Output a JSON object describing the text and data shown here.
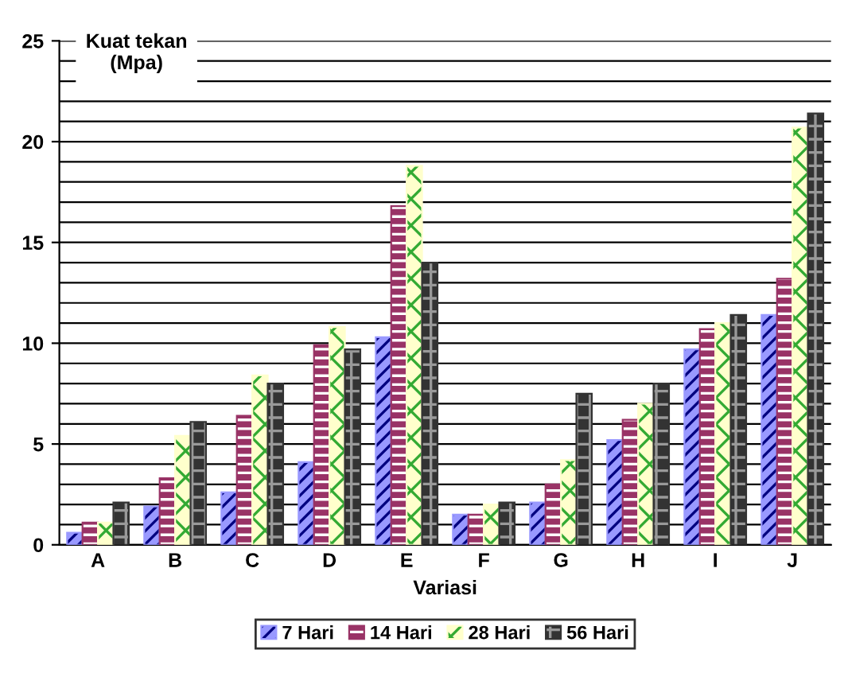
{
  "chart_data": {
    "type": "bar",
    "xlabel": "Variasi",
    "ylabel": "Kuat tekan\n(Mpa)",
    "categories": [
      "A",
      "B",
      "C",
      "D",
      "E",
      "F",
      "G",
      "H",
      "I",
      "J"
    ],
    "series": [
      {
        "name": "7 Hari",
        "color": "#9999ff",
        "values": [
          0.6,
          1.9,
          2.6,
          4.1,
          10.3,
          1.5,
          2.1,
          5.2,
          9.7,
          11.4
        ]
      },
      {
        "name": "14 Hari",
        "color": "#993366",
        "values": [
          1.1,
          3.3,
          6.4,
          9.9,
          16.8,
          1.5,
          3.0,
          6.2,
          10.7,
          13.2
        ]
      },
      {
        "name": "28 Hari",
        "color": "#ffffcc",
        "values": [
          1.1,
          5.4,
          8.4,
          10.8,
          18.8,
          2.0,
          4.2,
          7.0,
          11.0,
          20.7
        ]
      },
      {
        "name": "56 Hari",
        "color": "#333333",
        "values": [
          2.1,
          6.1,
          8.0,
          9.7,
          14.0,
          2.1,
          7.5,
          8.0,
          11.4,
          21.4
        ]
      }
    ],
    "ylim": [
      0,
      25
    ],
    "yticks": [
      0,
      {
        "value": 1,
        "label": null
      },
      {
        "value": 2,
        "label": null
      },
      {
        "value": 3,
        "label": null
      },
      {
        "value": 4,
        "label": null
      },
      5,
      {
        "value": 6,
        "label": null
      },
      {
        "value": 7,
        "label": null
      },
      {
        "value": 8,
        "label": null
      },
      {
        "value": 9,
        "label": null
      },
      10,
      {
        "value": 11,
        "label": null
      },
      {
        "value": 12,
        "label": null
      },
      {
        "value": 13,
        "label": null
      },
      {
        "value": 14,
        "label": null
      },
      15,
      {
        "value": 16,
        "label": null
      },
      {
        "value": 17,
        "label": null
      },
      {
        "value": 18,
        "label": null
      },
      {
        "value": 19,
        "label": null
      },
      20,
      {
        "value": 21,
        "label": null
      },
      {
        "value": 22,
        "label": null
      },
      {
        "value": 23,
        "label": null
      },
      {
        "value": 24,
        "label": null
      },
      25
    ],
    "grid": "y",
    "legend": "bottom"
  }
}
